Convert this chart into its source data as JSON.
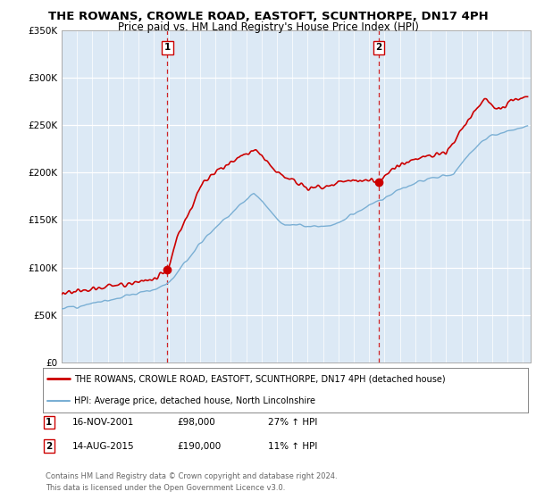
{
  "title": "THE ROWANS, CROWLE ROAD, EASTOFT, SCUNTHORPE, DN17 4PH",
  "subtitle": "Price paid vs. HM Land Registry's House Price Index (HPI)",
  "bg_color": "#dce9f5",
  "plot_bg_color": "#dce9f5",
  "red_line_color": "#cc0000",
  "blue_line_color": "#7aafd4",
  "transaction1": {
    "label": "1",
    "date": "16-NOV-2001",
    "price": 98000,
    "hpi_change": "27% ↑ HPI",
    "x_year": 2001.88
  },
  "transaction2": {
    "label": "2",
    "date": "14-AUG-2015",
    "price": 190000,
    "hpi_change": "11% ↑ HPI",
    "x_year": 2015.62
  },
  "legend_label_red": "THE ROWANS, CROWLE ROAD, EASTOFT, SCUNTHORPE, DN17 4PH (detached house)",
  "legend_label_blue": "HPI: Average price, detached house, North Lincolnshire",
  "footer_line1": "Contains HM Land Registry data © Crown copyright and database right 2024.",
  "footer_line2": "This data is licensed under the Open Government Licence v3.0.",
  "xmin": 1995,
  "xmax": 2025.5,
  "ymin": 0,
  "ymax": 350000,
  "yticks": [
    0,
    50000,
    100000,
    150000,
    200000,
    250000,
    300000,
    350000
  ],
  "ytick_labels": [
    "£0",
    "£50K",
    "£100K",
    "£150K",
    "£200K",
    "£250K",
    "£300K",
    "£350K"
  ]
}
